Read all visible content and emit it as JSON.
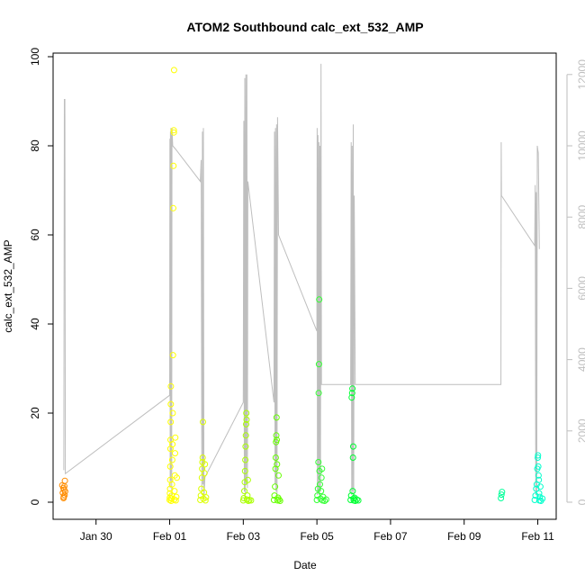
{
  "chart_data": {
    "type": "scatter",
    "title": "ATOM2 Southbound calc_ext_532_AMP",
    "xlabel": "Date",
    "ylabel": "calc_ext_532_AMP",
    "ylim": [
      0,
      100
    ],
    "yticks": [
      0,
      20,
      40,
      60,
      80,
      100
    ],
    "xlim": [
      "2020-01-28T20:00",
      "2020-02-11T12:00"
    ],
    "xticks": [
      {
        "label": "Jan 30",
        "date": "2020-01-30"
      },
      {
        "label": "Feb 01",
        "date": "2020-02-01"
      },
      {
        "label": "Feb 03",
        "date": "2020-02-03"
      },
      {
        "label": "Feb 05",
        "date": "2020-02-05"
      },
      {
        "label": "Feb 07",
        "date": "2020-02-07"
      },
      {
        "label": "Feb 09",
        "date": "2020-02-09"
      },
      {
        "label": "Feb 11",
        "date": "2020-02-11"
      }
    ],
    "y2lim": [
      0,
      12500
    ],
    "y2ticks": [
      0,
      2000,
      4000,
      6000,
      8000,
      10000,
      12000
    ],
    "colors": {
      "line": "#bebebe",
      "axis": "#000000",
      "right_axis": "#bebebe"
    },
    "grid": false,
    "legend": "none",
    "series": [
      {
        "type": "scatter",
        "color": "#ff8c00",
        "points": [
          [
            "2020-01-29T02:00",
            3.8
          ],
          [
            "2020-01-29T02:20",
            2.1
          ],
          [
            "2020-01-29T02:40",
            3.2
          ],
          [
            "2020-01-29T03:00",
            1.2
          ],
          [
            "2020-01-29T03:10",
            2.8
          ],
          [
            "2020-01-29T03:20",
            3.6
          ],
          [
            "2020-01-29T03:30",
            1.6
          ],
          [
            "2020-01-29T03:40",
            4.8
          ],
          [
            "2020-01-29T03:50",
            2.4
          ],
          [
            "2020-01-29T02:50",
            0.9
          ]
        ]
      },
      {
        "type": "scatter",
        "color": "#ffff00",
        "points": [
          [
            "2020-02-01T00:00",
            0.5
          ],
          [
            "2020-02-01T00:05",
            1.0
          ],
          [
            "2020-02-01T00:10",
            2.0
          ],
          [
            "2020-02-01T00:15",
            3.0
          ],
          [
            "2020-02-01T00:20",
            5.0
          ],
          [
            "2020-02-01T00:25",
            8.0
          ],
          [
            "2020-02-01T00:30",
            12.0
          ],
          [
            "2020-02-01T00:35",
            14.0
          ],
          [
            "2020-02-01T00:40",
            18.0
          ],
          [
            "2020-02-01T00:45",
            22.0
          ],
          [
            "2020-02-01T00:50",
            26.0
          ],
          [
            "2020-02-01T01:00",
            0.3
          ],
          [
            "2020-02-01T01:10",
            0.8
          ],
          [
            "2020-02-01T01:20",
            1.5
          ],
          [
            "2020-02-01T01:30",
            4.0
          ],
          [
            "2020-02-01T01:40",
            9.5
          ],
          [
            "2020-02-01T01:50",
            13.0
          ],
          [
            "2020-02-01T02:00",
            20.0
          ],
          [
            "2020-02-01T02:10",
            33.0
          ],
          [
            "2020-02-01T02:20",
            66.0
          ],
          [
            "2020-02-01T02:30",
            75.5
          ],
          [
            "2020-02-01T02:40",
            83.5
          ],
          [
            "2020-02-01T02:45",
            83.0
          ],
          [
            "2020-02-01T02:50",
            97.0
          ],
          [
            "2020-02-01T03:00",
            0.6
          ],
          [
            "2020-02-01T03:10",
            2.5
          ],
          [
            "2020-02-01T03:20",
            6.0
          ],
          [
            "2020-02-01T03:30",
            11.0
          ],
          [
            "2020-02-01T03:40",
            14.5
          ],
          [
            "2020-02-01T04:00",
            0.4
          ],
          [
            "2020-02-01T04:20",
            1.2
          ],
          [
            "2020-02-01T04:40",
            5.5
          ]
        ]
      },
      {
        "type": "scatter",
        "color": "#ddff00",
        "points": [
          [
            "2020-02-01T20:00",
            0.5
          ],
          [
            "2020-02-01T20:20",
            1.5
          ],
          [
            "2020-02-01T20:40",
            3.0
          ],
          [
            "2020-02-01T21:00",
            5.5
          ],
          [
            "2020-02-01T21:10",
            7.5
          ],
          [
            "2020-02-01T21:20",
            9.0
          ],
          [
            "2020-02-01T21:30",
            10.0
          ],
          [
            "2020-02-01T21:40",
            18.0
          ],
          [
            "2020-02-01T22:00",
            0.8
          ],
          [
            "2020-02-01T22:20",
            2.2
          ],
          [
            "2020-02-01T22:40",
            6.5
          ],
          [
            "2020-02-01T23:00",
            8.5
          ],
          [
            "2020-02-01T23:20",
            0.4
          ],
          [
            "2020-02-01T23:40",
            1.1
          ]
        ]
      },
      {
        "type": "scatter",
        "color": "#aaff00",
        "points": [
          [
            "2020-02-03T00:00",
            0.4
          ],
          [
            "2020-02-03T00:20",
            0.9
          ],
          [
            "2020-02-03T00:40",
            2.5
          ],
          [
            "2020-02-03T01:00",
            4.5
          ],
          [
            "2020-02-03T01:10",
            7.0
          ],
          [
            "2020-02-03T01:20",
            9.5
          ],
          [
            "2020-02-03T01:30",
            12.5
          ],
          [
            "2020-02-03T01:40",
            15.0
          ],
          [
            "2020-02-03T01:50",
            17.5
          ],
          [
            "2020-02-03T02:00",
            20.0
          ],
          [
            "2020-02-03T02:10",
            18.5
          ],
          [
            "2020-02-03T02:20",
            0.6
          ],
          [
            "2020-02-03T02:40",
            1.5
          ],
          [
            "2020-02-03T03:00",
            5.0
          ],
          [
            "2020-02-03T03:20",
            0.3
          ],
          [
            "2020-02-03T04:00",
            0.5
          ],
          [
            "2020-02-03T05:00",
            0.4
          ]
        ]
      },
      {
        "type": "scatter",
        "color": "#66ff00",
        "points": [
          [
            "2020-02-03T20:00",
            0.5
          ],
          [
            "2020-02-03T20:20",
            1.5
          ],
          [
            "2020-02-03T20:40",
            3.5
          ],
          [
            "2020-02-03T21:00",
            7.5
          ],
          [
            "2020-02-03T21:10",
            10.0
          ],
          [
            "2020-02-03T21:20",
            13.5
          ],
          [
            "2020-02-03T21:30",
            15.0
          ],
          [
            "2020-02-03T21:40",
            19.0
          ],
          [
            "2020-02-03T21:50",
            14.0
          ],
          [
            "2020-02-03T22:00",
            8.5
          ],
          [
            "2020-02-03T22:20",
            0.4
          ],
          [
            "2020-02-03T22:40",
            1.0
          ],
          [
            "2020-02-03T23:00",
            6.0
          ],
          [
            "2020-02-03T23:20",
            0.6
          ],
          [
            "2020-02-04T00:00",
            0.3
          ]
        ]
      },
      {
        "type": "scatter",
        "color": "#33ff33",
        "points": [
          [
            "2020-02-05T00:00",
            0.5
          ],
          [
            "2020-02-05T00:20",
            1.5
          ],
          [
            "2020-02-05T00:40",
            3.0
          ],
          [
            "2020-02-05T01:00",
            9.0
          ],
          [
            "2020-02-05T01:10",
            24.5
          ],
          [
            "2020-02-05T01:20",
            31.0
          ],
          [
            "2020-02-05T01:30",
            45.5
          ],
          [
            "2020-02-05T01:40",
            7.0
          ],
          [
            "2020-02-05T02:00",
            4.0
          ],
          [
            "2020-02-05T02:20",
            0.8
          ],
          [
            "2020-02-05T02:40",
            2.5
          ],
          [
            "2020-02-05T03:00",
            5.5
          ],
          [
            "2020-02-05T03:20",
            7.5
          ],
          [
            "2020-02-05T03:40",
            0.4
          ],
          [
            "2020-02-05T04:00",
            1.2
          ],
          [
            "2020-02-05T05:00",
            0.3
          ],
          [
            "2020-02-05T06:00",
            0.6
          ]
        ]
      },
      {
        "type": "scatter",
        "color": "#00ff33",
        "points": [
          [
            "2020-02-05T22:00",
            0.5
          ],
          [
            "2020-02-05T22:20",
            1.5
          ],
          [
            "2020-02-05T22:40",
            23.5
          ],
          [
            "2020-02-05T23:00",
            24.5
          ],
          [
            "2020-02-05T23:10",
            25.5
          ],
          [
            "2020-02-05T23:20",
            2.5
          ],
          [
            "2020-02-05T23:30",
            10.0
          ],
          [
            "2020-02-05T23:40",
            12.5
          ],
          [
            "2020-02-05T23:50",
            0.8
          ],
          [
            "2020-02-06T00:00",
            0.4
          ],
          [
            "2020-02-06T00:30",
            1.0
          ],
          [
            "2020-02-06T01:00",
            0.3
          ],
          [
            "2020-02-06T02:00",
            0.6
          ],
          [
            "2020-02-06T03:00",
            0.4
          ]
        ]
      },
      {
        "type": "scatter",
        "color": "#00ff99",
        "points": [
          [
            "2020-02-10T00:00",
            0.9
          ],
          [
            "2020-02-10T00:20",
            1.7
          ],
          [
            "2020-02-10T00:40",
            2.3
          ]
        ]
      },
      {
        "type": "scatter",
        "color": "#00ffcc",
        "points": [
          [
            "2020-02-10T22:00",
            0.5
          ],
          [
            "2020-02-10T22:30",
            1.5
          ],
          [
            "2020-02-10T23:00",
            3.0
          ],
          [
            "2020-02-10T23:20",
            4.0
          ],
          [
            "2020-02-10T23:40",
            7.5
          ],
          [
            "2020-02-11T00:00",
            10.0
          ],
          [
            "2020-02-11T00:10",
            10.5
          ],
          [
            "2020-02-11T00:20",
            8.0
          ],
          [
            "2020-02-11T00:30",
            6.0
          ],
          [
            "2020-02-11T00:40",
            5.0
          ],
          [
            "2020-02-11T00:50",
            2.0
          ],
          [
            "2020-02-11T01:00",
            0.4
          ],
          [
            "2020-02-11T01:20",
            1.2
          ],
          [
            "2020-02-11T01:40",
            3.5
          ],
          [
            "2020-02-11T02:00",
            0.3
          ],
          [
            "2020-02-11T03:00",
            0.8
          ]
        ]
      },
      {
        "type": "line",
        "axis": "right",
        "color": "#bebebe",
        "points": [
          [
            "2020-01-29T03:00",
            900
          ],
          [
            "2020-01-29T03:20",
            11300
          ],
          [
            "2020-01-29T03:40",
            11300
          ],
          [
            "2020-01-29T04:00",
            800
          ],
          [
            "2020-02-01T00:00",
            3000
          ],
          [
            "2020-02-01T00:10",
            10200
          ],
          [
            "2020-02-01T00:20",
            400
          ],
          [
            "2020-02-01T00:30",
            10400
          ],
          [
            "2020-02-01T00:40",
            600
          ],
          [
            "2020-02-01T00:50",
            10500
          ],
          [
            "2020-02-01T01:00",
            6300
          ],
          [
            "2020-02-01T01:10",
            10300
          ],
          [
            "2020-02-01T01:20",
            200
          ],
          [
            "2020-02-01T01:30",
            10500
          ],
          [
            "2020-02-01T02:00",
            10000
          ],
          [
            "2020-02-01T04:00",
            9900
          ],
          [
            "2020-02-01T20:00",
            9000
          ],
          [
            "2020-02-01T20:30",
            9600
          ],
          [
            "2020-02-01T21:00",
            300
          ],
          [
            "2020-02-01T21:20",
            10400
          ],
          [
            "2020-02-01T21:40",
            500
          ],
          [
            "2020-02-01T22:00",
            10500
          ],
          [
            "2020-02-01T22:20",
            100
          ],
          [
            "2020-02-01T23:00",
            700
          ],
          [
            "2020-02-03T00:00",
            2800
          ],
          [
            "2020-02-03T00:20",
            10700
          ],
          [
            "2020-02-03T00:40",
            300
          ],
          [
            "2020-02-03T01:00",
            11900
          ],
          [
            "2020-02-03T01:20",
            200
          ],
          [
            "2020-02-03T01:40",
            12000
          ],
          [
            "2020-02-03T02:00",
            500
          ],
          [
            "2020-02-03T02:20",
            12000
          ],
          [
            "2020-02-03T02:40",
            400
          ],
          [
            "2020-02-03T03:00",
            9000
          ],
          [
            "2020-02-03T20:00",
            2800
          ],
          [
            "2020-02-03T20:20",
            10400
          ],
          [
            "2020-02-03T20:40",
            500
          ],
          [
            "2020-02-03T21:00",
            10500
          ],
          [
            "2020-02-03T21:20",
            300
          ],
          [
            "2020-02-03T21:40",
            10600
          ],
          [
            "2020-02-03T22:00",
            200
          ],
          [
            "2020-02-03T22:20",
            10800
          ],
          [
            "2020-02-03T23:00",
            7500
          ],
          [
            "2020-02-05T00:00",
            4800
          ],
          [
            "2020-02-05T00:10",
            10500
          ],
          [
            "2020-02-05T00:20",
            200
          ],
          [
            "2020-02-05T00:40",
            10300
          ],
          [
            "2020-02-05T01:00",
            300
          ],
          [
            "2020-02-05T01:20",
            10100
          ],
          [
            "2020-02-05T01:40",
            200
          ],
          [
            "2020-02-05T02:00",
            10000
          ],
          [
            "2020-02-05T02:20",
            300
          ],
          [
            "2020-02-05T02:40",
            12300
          ],
          [
            "2020-02-05T03:00",
            3300
          ],
          [
            "2020-02-05T22:00",
            3300
          ],
          [
            "2020-02-05T22:20",
            10100
          ],
          [
            "2020-02-05T22:40",
            200
          ],
          [
            "2020-02-05T23:00",
            10000
          ],
          [
            "2020-02-05T23:20",
            300
          ],
          [
            "2020-02-05T23:40",
            10600
          ],
          [
            "2020-02-06T00:00",
            100
          ],
          [
            "2020-02-06T00:20",
            8600
          ],
          [
            "2020-02-06T01:00",
            3300
          ],
          [
            "2020-02-10T00:00",
            3300
          ],
          [
            "2020-02-10T00:10",
            10100
          ],
          [
            "2020-02-10T00:20",
            8600
          ],
          [
            "2020-02-10T22:00",
            7200
          ],
          [
            "2020-02-10T22:20",
            8900
          ],
          [
            "2020-02-10T22:40",
            200
          ],
          [
            "2020-02-10T23:00",
            8700
          ],
          [
            "2020-02-10T23:20",
            300
          ],
          [
            "2020-02-10T23:40",
            10000
          ],
          [
            "2020-02-11T00:00",
            9900
          ],
          [
            "2020-02-11T00:20",
            9800
          ],
          [
            "2020-02-11T01:00",
            7100
          ]
        ]
      }
    ]
  }
}
